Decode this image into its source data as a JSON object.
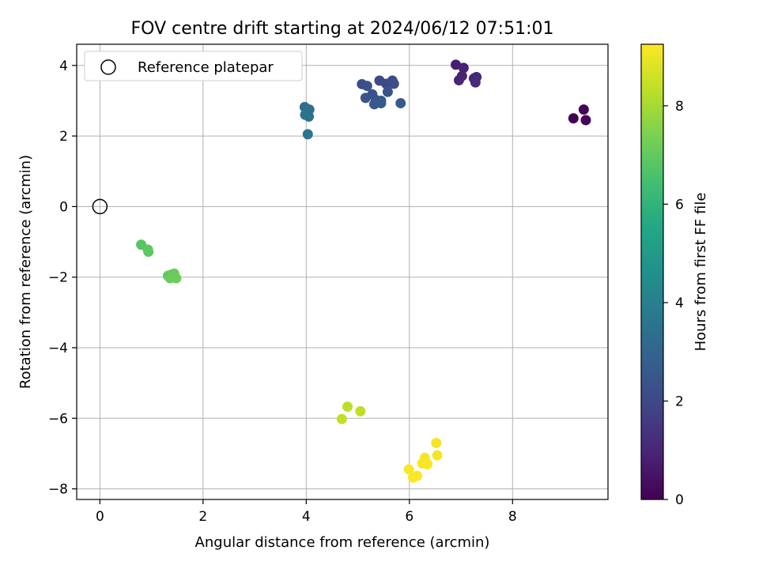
{
  "chart_data": {
    "type": "scatter",
    "title": "FOV centre drift starting at 2024/06/12 07:51:01",
    "xlabel": "Angular distance from reference (arcmin)",
    "ylabel": "Rotation from reference (arcmin)",
    "xlim": [
      -0.45,
      9.85
    ],
    "ylim": [
      -8.3,
      4.6
    ],
    "xticks": [
      0,
      2,
      4,
      6,
      8
    ],
    "yticks": [
      -8,
      -6,
      -4,
      -2,
      0,
      2,
      4
    ],
    "xtick_labels": [
      "0",
      "2",
      "4",
      "6",
      "8"
    ],
    "ytick_labels": [
      "−8",
      "−6",
      "−4",
      "−2",
      "0",
      "2",
      "4"
    ],
    "grid": true,
    "legend": {
      "position": "top-left",
      "entries": [
        "Reference platepar"
      ]
    },
    "colorbar": {
      "label": "Hours from first FF file",
      "range": [
        0,
        9.25
      ],
      "ticks": [
        0,
        2,
        4,
        6,
        8
      ],
      "tick_labels": [
        "0",
        "2",
        "4",
        "6",
        "8"
      ],
      "colormap": "viridis"
    },
    "reference_point": {
      "x": 0,
      "y": 0
    },
    "points": [
      {
        "x": 9.18,
        "y": 2.5,
        "c": 0.0
      },
      {
        "x": 9.38,
        "y": 2.75,
        "c": 0.1
      },
      {
        "x": 9.42,
        "y": 2.45,
        "c": 0.2
      },
      {
        "x": 6.9,
        "y": 4.02,
        "c": 0.8
      },
      {
        "x": 7.05,
        "y": 3.93,
        "c": 0.85
      },
      {
        "x": 7.02,
        "y": 3.7,
        "c": 0.9
      },
      {
        "x": 6.96,
        "y": 3.58,
        "c": 0.95
      },
      {
        "x": 7.25,
        "y": 3.63,
        "c": 1.0
      },
      {
        "x": 7.3,
        "y": 3.67,
        "c": 1.05
      },
      {
        "x": 7.28,
        "y": 3.52,
        "c": 1.1
      },
      {
        "x": 5.42,
        "y": 3.57,
        "c": 2.0
      },
      {
        "x": 5.55,
        "y": 3.48,
        "c": 2.05
      },
      {
        "x": 5.67,
        "y": 3.57,
        "c": 2.1
      },
      {
        "x": 5.7,
        "y": 3.48,
        "c": 2.15
      },
      {
        "x": 5.08,
        "y": 3.47,
        "c": 2.2
      },
      {
        "x": 5.18,
        "y": 3.42,
        "c": 2.25
      },
      {
        "x": 5.58,
        "y": 3.25,
        "c": 2.3
      },
      {
        "x": 5.28,
        "y": 3.18,
        "c": 2.35
      },
      {
        "x": 5.15,
        "y": 3.08,
        "c": 2.4
      },
      {
        "x": 5.35,
        "y": 3.02,
        "c": 2.45
      },
      {
        "x": 5.45,
        "y": 3.0,
        "c": 2.5
      },
      {
        "x": 5.32,
        "y": 2.9,
        "c": 2.55
      },
      {
        "x": 5.45,
        "y": 2.93,
        "c": 2.6
      },
      {
        "x": 5.83,
        "y": 2.93,
        "c": 2.65
      },
      {
        "x": 3.97,
        "y": 2.82,
        "c": 3.3
      },
      {
        "x": 4.06,
        "y": 2.75,
        "c": 3.4
      },
      {
        "x": 3.98,
        "y": 2.6,
        "c": 3.5
      },
      {
        "x": 4.05,
        "y": 2.55,
        "c": 3.55
      },
      {
        "x": 4.03,
        "y": 2.05,
        "c": 3.6
      },
      {
        "x": 0.8,
        "y": -1.08,
        "c": 6.8
      },
      {
        "x": 0.93,
        "y": -1.22,
        "c": 6.85
      },
      {
        "x": 0.94,
        "y": -1.28,
        "c": 6.9
      },
      {
        "x": 1.32,
        "y": -1.96,
        "c": 6.95
      },
      {
        "x": 1.4,
        "y": -1.92,
        "c": 7.0
      },
      {
        "x": 1.44,
        "y": -1.9,
        "c": 7.05
      },
      {
        "x": 1.36,
        "y": -2.03,
        "c": 7.1
      },
      {
        "x": 1.48,
        "y": -2.03,
        "c": 7.15
      },
      {
        "x": 4.8,
        "y": -5.67,
        "c": 8.3
      },
      {
        "x": 5.05,
        "y": -5.8,
        "c": 8.35
      },
      {
        "x": 4.69,
        "y": -6.02,
        "c": 8.4
      },
      {
        "x": 6.52,
        "y": -6.7,
        "c": 9.1
      },
      {
        "x": 6.54,
        "y": -7.05,
        "c": 9.12
      },
      {
        "x": 6.3,
        "y": -7.12,
        "c": 9.14
      },
      {
        "x": 6.25,
        "y": -7.28,
        "c": 9.16
      },
      {
        "x": 6.35,
        "y": -7.3,
        "c": 9.18
      },
      {
        "x": 5.99,
        "y": -7.45,
        "c": 9.2
      },
      {
        "x": 6.15,
        "y": -7.63,
        "c": 9.22
      },
      {
        "x": 6.07,
        "y": -7.68,
        "c": 9.24
      }
    ]
  }
}
